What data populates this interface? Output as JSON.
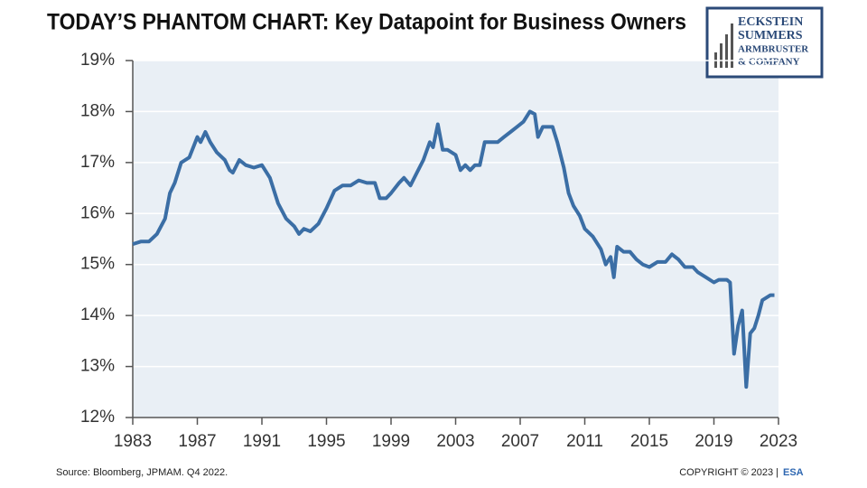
{
  "header": {
    "title": "TODAY’S PHANTOM CHART: Key Datapoint for Business Owners",
    "logo": [
      "ECKSTEIN",
      "SUMMERS",
      "ARMBRUSTER",
      "& COMPANY"
    ]
  },
  "footer": {
    "source": "Source: Bloomberg, JPMAM. Q4 2022.",
    "copyright": "COPYRIGHT © 2023 |",
    "brand": "ESA"
  },
  "chart_data": {
    "type": "line",
    "x": [
      1983.0,
      1983.5,
      1984.0,
      1984.5,
      1985.0,
      1985.3,
      1985.6,
      1986.0,
      1986.5,
      1987.0,
      1987.2,
      1987.5,
      1987.8,
      1988.2,
      1988.7,
      1989.0,
      1989.2,
      1989.6,
      1990.0,
      1990.5,
      1991.0,
      1991.5,
      1992.0,
      1992.5,
      1993.0,
      1993.3,
      1993.6,
      1994.0,
      1994.5,
      1995.0,
      1995.5,
      1996.0,
      1996.5,
      1997.0,
      1997.5,
      1998.0,
      1998.3,
      1998.7,
      1999.0,
      1999.5,
      1999.8,
      2000.2,
      2000.6,
      2001.0,
      2001.4,
      2001.6,
      2001.9,
      2002.2,
      2002.5,
      2003.0,
      2003.3,
      2003.6,
      2003.9,
      2004.2,
      2004.5,
      2004.8,
      2005.2,
      2005.6,
      2006.0,
      2006.4,
      2006.8,
      2007.2,
      2007.6,
      2007.9,
      2008.1,
      2008.4,
      2008.8,
      2009.0,
      2009.3,
      2009.7,
      2010.0,
      2010.3,
      2010.7,
      2011.0,
      2011.5,
      2012.0,
      2012.3,
      2012.6,
      2012.8,
      2013.0,
      2013.4,
      2013.8,
      2014.2,
      2014.6,
      2015.0,
      2015.5,
      2016.0,
      2016.4,
      2016.8,
      2017.2,
      2017.7,
      2018.0,
      2018.5,
      2019.0,
      2019.3,
      2019.8,
      2020.0,
      2020.25,
      2020.5,
      2020.75,
      2021.0,
      2021.25,
      2021.5,
      2021.75,
      2022.0,
      2022.5,
      2022.75
    ],
    "series": [
      {
        "color": "#3b6ea5",
        "values": [
          15.4,
          15.45,
          15.45,
          15.6,
          15.9,
          16.4,
          16.6,
          17.0,
          17.1,
          17.5,
          17.4,
          17.6,
          17.4,
          17.2,
          17.05,
          16.85,
          16.8,
          17.05,
          16.95,
          16.9,
          16.95,
          16.7,
          16.2,
          15.9,
          15.75,
          15.6,
          15.7,
          15.65,
          15.8,
          16.1,
          16.45,
          16.55,
          16.55,
          16.65,
          16.6,
          16.6,
          16.3,
          16.3,
          16.4,
          16.6,
          16.7,
          16.55,
          16.8,
          17.05,
          17.4,
          17.3,
          17.75,
          17.25,
          17.25,
          17.15,
          16.85,
          16.95,
          16.85,
          16.95,
          16.95,
          17.4,
          17.4,
          17.4,
          17.5,
          17.6,
          17.7,
          17.8,
          18.0,
          17.95,
          17.5,
          17.7,
          17.7,
          17.7,
          17.4,
          16.9,
          16.4,
          16.15,
          15.95,
          15.7,
          15.55,
          15.3,
          15.0,
          15.15,
          14.75,
          15.35,
          15.25,
          15.25,
          15.1,
          15.0,
          14.95,
          15.05,
          15.05,
          15.2,
          15.1,
          14.95,
          14.95,
          14.85,
          14.75,
          14.65,
          14.7,
          14.7,
          14.65,
          13.25,
          13.8,
          14.1,
          12.6,
          13.65,
          13.75,
          14.0,
          14.3,
          14.4,
          14.4
        ]
      }
    ],
    "xlim": [
      1983,
      2023
    ],
    "xticks": [
      1983,
      1987,
      1991,
      1995,
      1999,
      2003,
      2007,
      2011,
      2015,
      2019,
      2023
    ],
    "ylim": [
      12,
      19
    ],
    "yticks": [
      {
        "value": 12,
        "label": "12%"
      },
      {
        "value": 13,
        "label": "13%"
      },
      {
        "value": 14,
        "label": "14%"
      },
      {
        "value": 15,
        "label": "15%"
      },
      {
        "value": 16,
        "label": "16%"
      },
      {
        "value": 17,
        "label": "17%"
      },
      {
        "value": 18,
        "label": "18%"
      },
      {
        "value": 19,
        "label": "19%"
      }
    ],
    "grid": true
  }
}
